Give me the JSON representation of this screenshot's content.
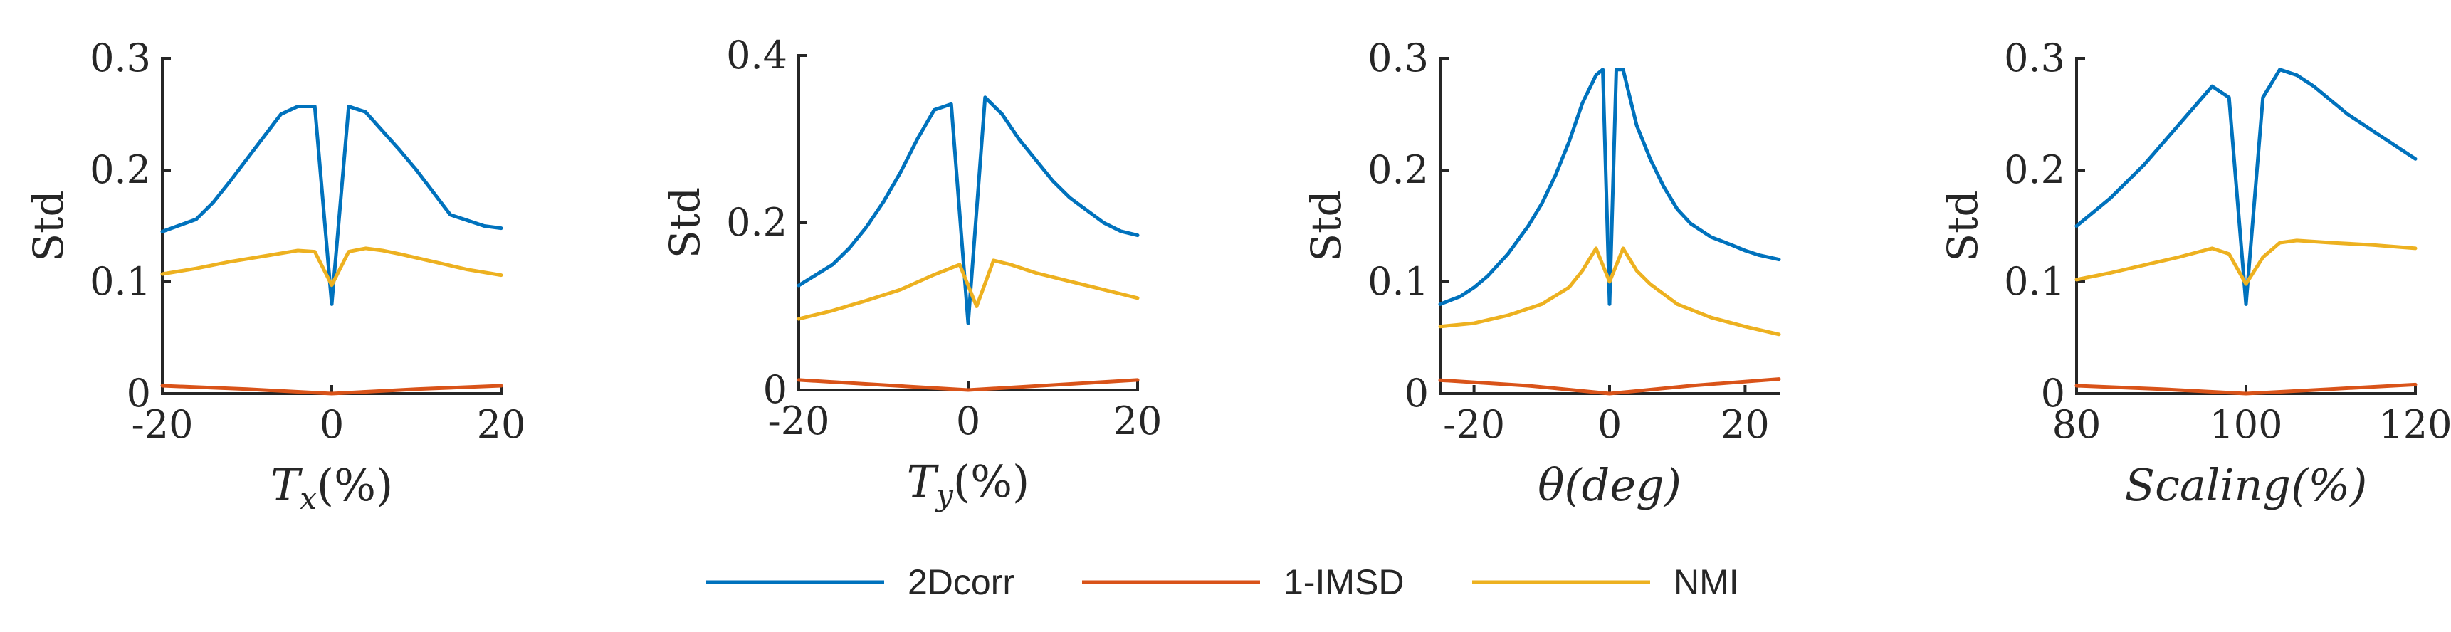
{
  "legend": [
    {
      "label": "2Dcorr",
      "color": "#0072BD"
    },
    {
      "label": "1-IMSD",
      "color": "#D95319"
    },
    {
      "label": "NMI",
      "color": "#EDB120"
    }
  ],
  "chart_data": [
    {
      "type": "line",
      "id": "tx",
      "xlabel": "Tx(%)",
      "xlabel_main": "T",
      "xlabel_sub": "x",
      "xlabel_rest": "(%)",
      "ylabel": "Std",
      "xlim": [
        -20,
        20
      ],
      "ylim": [
        0,
        0.3
      ],
      "xticks": [
        -20,
        0,
        20
      ],
      "xtick_labels": [
        "-20",
        "0",
        "20"
      ],
      "yticks": [
        0,
        0.1,
        0.2,
        0.3
      ],
      "ytick_labels": [
        "0",
        "0.1",
        "0.2",
        "0.3"
      ],
      "series": [
        {
          "name": "2Dcorr",
          "color": "#0072BD",
          "x": [
            -20,
            -16,
            -14,
            -12,
            -10,
            -8,
            -6,
            -4,
            -2,
            0,
            2,
            4,
            6,
            8,
            10,
            12,
            14,
            16,
            18,
            20
          ],
          "y": [
            0.145,
            0.156,
            0.171,
            0.19,
            0.21,
            0.23,
            0.25,
            0.257,
            0.257,
            0.08,
            0.257,
            0.252,
            0.235,
            0.218,
            0.2,
            0.18,
            0.16,
            0.155,
            0.15,
            0.148
          ]
        },
        {
          "name": "1-IMSD",
          "color": "#D95319",
          "x": [
            -20,
            -10,
            -5,
            0,
            5,
            10,
            20
          ],
          "y": [
            0.007,
            0.004,
            0.002,
            0.0,
            0.002,
            0.004,
            0.007
          ]
        },
        {
          "name": "NMI",
          "color": "#EDB120",
          "x": [
            -20,
            -16,
            -12,
            -8,
            -4,
            -2,
            0,
            2,
            4,
            6,
            8,
            12,
            16,
            20
          ],
          "y": [
            0.107,
            0.112,
            0.118,
            0.123,
            0.128,
            0.127,
            0.097,
            0.127,
            0.13,
            0.128,
            0.125,
            0.118,
            0.111,
            0.106
          ]
        }
      ]
    },
    {
      "type": "line",
      "id": "ty",
      "xlabel": "Ty(%)",
      "xlabel_main": "T",
      "xlabel_sub": "y",
      "xlabel_rest": "(%)",
      "ylabel": "Std",
      "xlim": [
        -20,
        20
      ],
      "ylim": [
        0,
        0.4
      ],
      "xticks": [
        -20,
        0,
        20
      ],
      "xtick_labels": [
        "-20",
        "0",
        "20"
      ],
      "yticks": [
        0,
        0.2,
        0.4
      ],
      "ytick_labels": [
        "0",
        "0.2",
        "0.4"
      ],
      "series": [
        {
          "name": "2Dcorr",
          "color": "#0072BD",
          "x": [
            -20,
            -16,
            -14,
            -12,
            -10,
            -8,
            -6,
            -4,
            -2,
            0,
            2,
            4,
            6,
            8,
            10,
            12,
            14,
            16,
            18,
            20
          ],
          "y": [
            0.125,
            0.15,
            0.17,
            0.195,
            0.225,
            0.26,
            0.3,
            0.335,
            0.342,
            0.08,
            0.35,
            0.33,
            0.3,
            0.275,
            0.25,
            0.23,
            0.215,
            0.2,
            0.19,
            0.185
          ]
        },
        {
          "name": "1-IMSD",
          "color": "#D95319",
          "x": [
            -20,
            -10,
            0,
            10,
            20
          ],
          "y": [
            0.012,
            0.006,
            0.0,
            0.006,
            0.012
          ]
        },
        {
          "name": "NMI",
          "color": "#EDB120",
          "x": [
            -20,
            -16,
            -12,
            -8,
            -4,
            -1,
            1,
            3,
            5,
            8,
            12,
            16,
            20
          ],
          "y": [
            0.085,
            0.095,
            0.107,
            0.12,
            0.138,
            0.15,
            0.1,
            0.155,
            0.15,
            0.14,
            0.13,
            0.12,
            0.11
          ]
        }
      ]
    },
    {
      "type": "line",
      "id": "theta",
      "xlabel": "θ(deg)",
      "xlabel_main": "θ(deg)",
      "xlabel_sub": "",
      "xlabel_rest": "",
      "ylabel": "Std",
      "xlim": [
        -25,
        25
      ],
      "ylim": [
        0,
        0.3
      ],
      "xticks": [
        -20,
        0,
        20
      ],
      "xtick_labels": [
        "-20",
        "0",
        "20"
      ],
      "yticks": [
        0,
        0.1,
        0.2,
        0.3
      ],
      "ytick_labels": [
        "0",
        "0.1",
        "0.2",
        "0.3"
      ],
      "series": [
        {
          "name": "2Dcorr",
          "color": "#0072BD",
          "x": [
            -25,
            -22,
            -20,
            -18,
            -15,
            -12,
            -10,
            -8,
            -6,
            -4,
            -2,
            -1,
            0,
            1,
            2,
            4,
            6,
            8,
            10,
            12,
            15,
            18,
            20,
            22,
            25
          ],
          "y": [
            0.08,
            0.087,
            0.095,
            0.105,
            0.125,
            0.15,
            0.17,
            0.195,
            0.225,
            0.26,
            0.285,
            0.29,
            0.08,
            0.29,
            0.29,
            0.24,
            0.21,
            0.185,
            0.165,
            0.152,
            0.14,
            0.133,
            0.128,
            0.124,
            0.12
          ]
        },
        {
          "name": "1-IMSD",
          "color": "#D95319",
          "x": [
            -25,
            -12,
            0,
            12,
            25
          ],
          "y": [
            0.012,
            0.007,
            0.0,
            0.007,
            0.013
          ]
        },
        {
          "name": "NMI",
          "color": "#EDB120",
          "x": [
            -25,
            -20,
            -15,
            -10,
            -6,
            -4,
            -2,
            0,
            2,
            4,
            6,
            10,
            15,
            20,
            25
          ],
          "y": [
            0.06,
            0.063,
            0.07,
            0.08,
            0.095,
            0.11,
            0.13,
            0.1,
            0.13,
            0.11,
            0.098,
            0.08,
            0.068,
            0.06,
            0.053
          ]
        }
      ]
    },
    {
      "type": "line",
      "id": "scaling",
      "xlabel": "Scaling(%)",
      "xlabel_main": "Scaling(%)",
      "xlabel_sub": "",
      "xlabel_rest": "",
      "ylabel": "Std",
      "xlim": [
        80,
        120
      ],
      "ylim": [
        0,
        0.3
      ],
      "xticks": [
        80,
        100,
        120
      ],
      "xtick_labels": [
        "80",
        "100",
        "120"
      ],
      "yticks": [
        0,
        0.1,
        0.2,
        0.3
      ],
      "ytick_labels": [
        "0",
        "0.1",
        "0.2",
        "0.3"
      ],
      "series": [
        {
          "name": "2Dcorr",
          "color": "#0072BD",
          "x": [
            80,
            84,
            88,
            92,
            96,
            98,
            100,
            102,
            104,
            106,
            108,
            112,
            116,
            120
          ],
          "y": [
            0.15,
            0.175,
            0.205,
            0.24,
            0.275,
            0.265,
            0.08,
            0.265,
            0.29,
            0.285,
            0.275,
            0.25,
            0.23,
            0.21
          ]
        },
        {
          "name": "1-IMSD",
          "color": "#D95319",
          "x": [
            80,
            90,
            100,
            110,
            120
          ],
          "y": [
            0.007,
            0.004,
            0.0,
            0.004,
            0.008
          ]
        },
        {
          "name": "NMI",
          "color": "#EDB120",
          "x": [
            80,
            84,
            88,
            92,
            96,
            98,
            100,
            102,
            104,
            106,
            110,
            115,
            120
          ],
          "y": [
            0.102,
            0.108,
            0.115,
            0.122,
            0.13,
            0.125,
            0.098,
            0.122,
            0.135,
            0.137,
            0.135,
            0.133,
            0.13
          ]
        }
      ]
    }
  ]
}
